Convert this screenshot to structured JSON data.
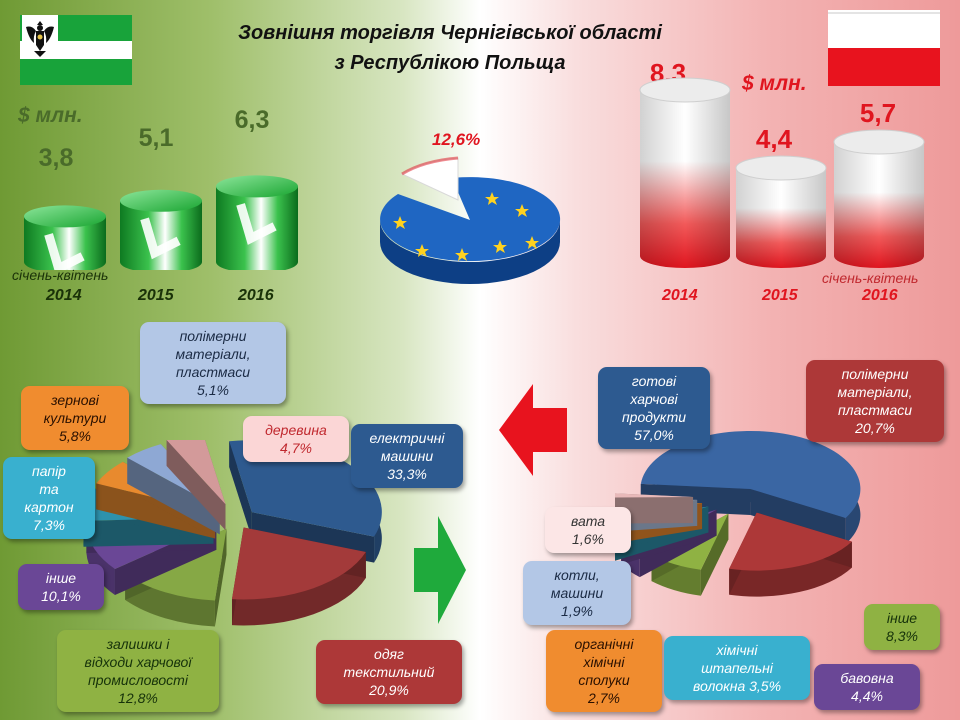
{
  "title_line1": "Зовнішня торгівля Чернігівської області",
  "title_line2": "з Республікою Польща",
  "chart_data": [
    {
      "type": "bar",
      "categories": [
        "2014",
        "2015",
        "2016"
      ],
      "values": [
        3.8,
        5.1,
        6.3
      ],
      "value_labels": [
        "3,8",
        "5,1",
        "6,3"
      ],
      "ylabel": "$ млн.",
      "note": "січень-квітень",
      "color": "#2fae3c"
    },
    {
      "type": "pie",
      "slices": [
        {
          "label": "12,6%",
          "value": 12.6,
          "color": "#ffffff"
        },
        {
          "label": "",
          "value": 87.4,
          "color": "#1f66c2"
        }
      ],
      "label_color": "#e0151f"
    },
    {
      "type": "bar",
      "categories": [
        "2014",
        "2015",
        "2016"
      ],
      "values": [
        8.3,
        4.4,
        5.7
      ],
      "value_labels": [
        "8,3",
        "4,4",
        "5,7"
      ],
      "ylabel": "$ млн.",
      "note": "січень-квітень",
      "color": "#e0151f"
    },
    {
      "type": "pie",
      "slices": [
        {
          "label": "електричні машини 33,3%",
          "value": 33.3,
          "color": "#2e5a8f"
        },
        {
          "label": "одяг текстильний 20,9%",
          "value": 20.9,
          "color": "#a33a3a"
        },
        {
          "label": "залишки і відходи харчової промисловості 12,8%",
          "value": 12.8,
          "color": "#86a845"
        },
        {
          "label": "інше 10,1%",
          "value": 10.1,
          "color": "#6a4796"
        },
        {
          "label": "папір та картон 7,3%",
          "value": 7.3,
          "color": "#2e92ad"
        },
        {
          "label": "зернові культури 5,8%",
          "value": 5.8,
          "color": "#e88a2e"
        },
        {
          "label": "полімерни матеріали, пластмаси 5,1%",
          "value": 5.1,
          "color": "#8ea8d4"
        },
        {
          "label": "деревина 4,7%",
          "value": 4.7,
          "color": "#d39a9a"
        }
      ]
    },
    {
      "type": "pie",
      "slices": [
        {
          "label": "готові харчові продукти 57,0%",
          "value": 57.0,
          "color": "#3a66a3"
        },
        {
          "label": "полімерни матеріали, пластмаси 20,7%",
          "value": 20.7,
          "color": "#ad3838"
        },
        {
          "label": "інше 8,3%",
          "value": 8.3,
          "color": "#8fb243"
        },
        {
          "label": "бавовна 4,4%",
          "value": 4.4,
          "color": "#6a4796"
        },
        {
          "label": "хімічні штапельні волокна 3,5%",
          "value": 3.5,
          "color": "#2e92ad"
        },
        {
          "label": "органічні хімічні сполуки 2,7%",
          "value": 2.7,
          "color": "#f08c2f"
        },
        {
          "label": "котли, машини 1,9%",
          "value": 1.9,
          "color": "#b3c7e6"
        },
        {
          "label": "вата 1,6%",
          "value": 1.6,
          "color": "#e8b9b9"
        }
      ]
    }
  ],
  "left": {
    "unit": "$ млн.",
    "note": "січень-квітень",
    "years": [
      "2014",
      "2015",
      "2016"
    ],
    "values": [
      "3,8",
      "5,1",
      "6,3"
    ]
  },
  "right": {
    "unit": "$ млн.",
    "note": "січень-квітень",
    "years": [
      "2014",
      "2015",
      "2016"
    ],
    "values": [
      "8,3",
      "4,4",
      "5,7"
    ]
  },
  "center_pie_label": "12,6%",
  "export_labels": {
    "polymer": [
      "полімерни",
      "матеріали,",
      "пластмаси",
      "5,1%"
    ],
    "grain": [
      "зернові",
      "культури",
      "5,8%"
    ],
    "wood": [
      "деревина",
      "4,7%"
    ],
    "electric": [
      "електричні",
      "машини",
      "33,3%"
    ],
    "paper": [
      "папір",
      "та",
      "картон",
      "7,3%"
    ],
    "other": [
      "інше",
      "10,1%"
    ],
    "waste": [
      "залишки і",
      "відходи харчової",
      "промисловості",
      "12,8%"
    ],
    "clothing": [
      "одяг",
      "текстильний",
      "20,9%"
    ]
  },
  "import_labels": {
    "food": [
      "готові",
      "харчові",
      "продукти",
      "57,0%"
    ],
    "polymer": [
      "полімерни",
      "матеріали,",
      "пластмаси",
      "20,7%"
    ],
    "wool": [
      "вата",
      "1,6%"
    ],
    "boilers": [
      "котли,",
      "машини",
      "1,9%"
    ],
    "organic": [
      "органічні",
      "хімічні",
      "сполуки",
      "2,7%"
    ],
    "fiber": [
      "хімічні",
      "штапельні",
      "волокна 3,5%"
    ],
    "cotton": [
      "бавовна",
      "4,4%"
    ],
    "other": [
      "інше",
      "8,3%"
    ]
  },
  "colors": {
    "ukraine_green": "#2fae3c",
    "poland_red": "#e0151f",
    "eu_blue": "#1f66c2"
  },
  "icons": [
    "chernihiv-flag-icon",
    "poland-flag-icon",
    "eu-star-icon",
    "arrow-left-icon",
    "arrow-right-icon"
  ]
}
